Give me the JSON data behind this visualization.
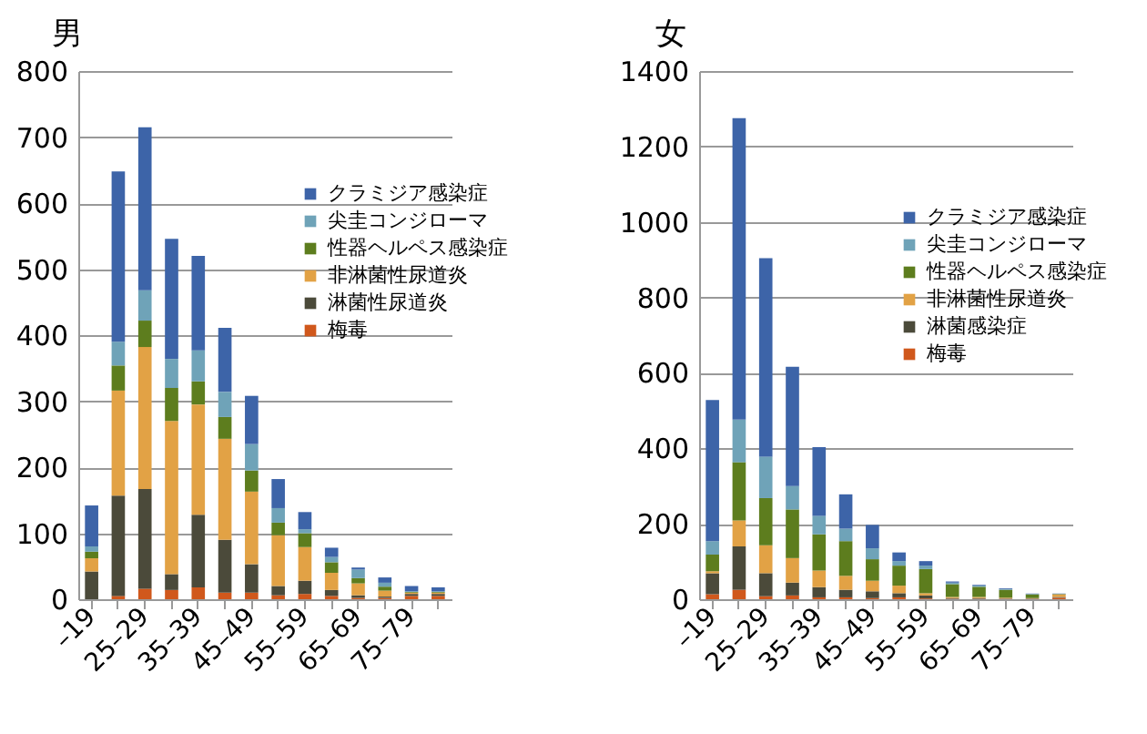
{
  "chart_data": [
    {
      "type": "bar",
      "stacked": true,
      "title": "男",
      "categories": [
        "–19",
        null,
        "25–29",
        null,
        "35–39",
        null,
        "45–49",
        null,
        "55–59",
        null,
        "65–69",
        null,
        "75–79",
        null
      ],
      "ylim": [
        0,
        800
      ],
      "yticks": [
        0,
        100,
        200,
        300,
        400,
        500,
        600,
        700,
        800
      ],
      "grid": "y",
      "legend": "right",
      "series": [
        {
          "name": "梅毒",
          "color": "#d0581c",
          "values": [
            0,
            5,
            16,
            14,
            18,
            10,
            10,
            6,
            8,
            5,
            2,
            2,
            5,
            5
          ]
        },
        {
          "name": "淋菌性尿道炎",
          "color": "#4b4a3a",
          "values": [
            42,
            152,
            151,
            24,
            110,
            80,
            43,
            14,
            20,
            9,
            4,
            2,
            3,
            3
          ]
        },
        {
          "name": "非淋菌性尿道炎",
          "color": "#e2a245",
          "values": [
            20,
            159,
            215,
            232,
            167,
            153,
            110,
            77,
            51,
            26,
            18,
            9,
            2,
            2
          ]
        },
        {
          "name": "性器ヘルペス感染症",
          "color": "#5d7d1e",
          "values": [
            10,
            38,
            40,
            50,
            35,
            33,
            32,
            19,
            21,
            16,
            8,
            6,
            1,
            1
          ]
        },
        {
          "name": "尖圭コンジローマ",
          "color": "#6fa3b8",
          "values": [
            8,
            36,
            46,
            44,
            47,
            38,
            40,
            22,
            6,
            8,
            13,
            6,
            1,
            1
          ]
        },
        {
          "name": "クラミジア感染症",
          "color": "#3d64a8",
          "values": [
            62,
            258,
            247,
            182,
            143,
            97,
            73,
            44,
            26,
            14,
            3,
            8,
            8,
            6
          ]
        }
      ]
    },
    {
      "type": "bar",
      "stacked": true,
      "title": "女",
      "categories": [
        "–19",
        null,
        "25–29",
        null,
        "35–39",
        null,
        "45–49",
        null,
        "55–59",
        null,
        "65–69",
        null,
        "75–79",
        null
      ],
      "ylim": [
        0,
        1400
      ],
      "yticks": [
        0,
        200,
        400,
        600,
        800,
        1000,
        1200,
        1400
      ],
      "grid": "y",
      "legend": "right",
      "series": [
        {
          "name": "梅毒",
          "color": "#d0581c",
          "values": [
            13,
            25,
            8,
            10,
            5,
            5,
            3,
            5,
            2,
            1,
            1,
            1,
            1,
            4
          ]
        },
        {
          "name": "淋菌感染症",
          "color": "#4b4a3a",
          "values": [
            56,
            115,
            61,
            34,
            27,
            20,
            18,
            11,
            8,
            2,
            2,
            1,
            1,
            2
          ]
        },
        {
          "name": "非淋菌性尿道炎",
          "color": "#e2a245",
          "values": [
            5,
            69,
            74,
            65,
            44,
            37,
            28,
            20,
            6,
            3,
            3,
            2,
            1,
            7
          ]
        },
        {
          "name": "性器ヘルペス感染症",
          "color": "#5d7d1e",
          "values": [
            44,
            154,
            125,
            129,
            96,
            92,
            57,
            53,
            64,
            34,
            27,
            21,
            10,
            1
          ]
        },
        {
          "name": "尖圭コンジローマ",
          "color": "#6fa3b8",
          "values": [
            36,
            113,
            110,
            62,
            49,
            33,
            29,
            12,
            9,
            4,
            3,
            2,
            1,
            0
          ]
        },
        {
          "name": "クラミジア感染症",
          "color": "#3d64a8",
          "values": [
            374,
            799,
            526,
            316,
            182,
            91,
            62,
            23,
            12,
            3,
            2,
            2,
            1,
            1
          ]
        }
      ]
    }
  ]
}
